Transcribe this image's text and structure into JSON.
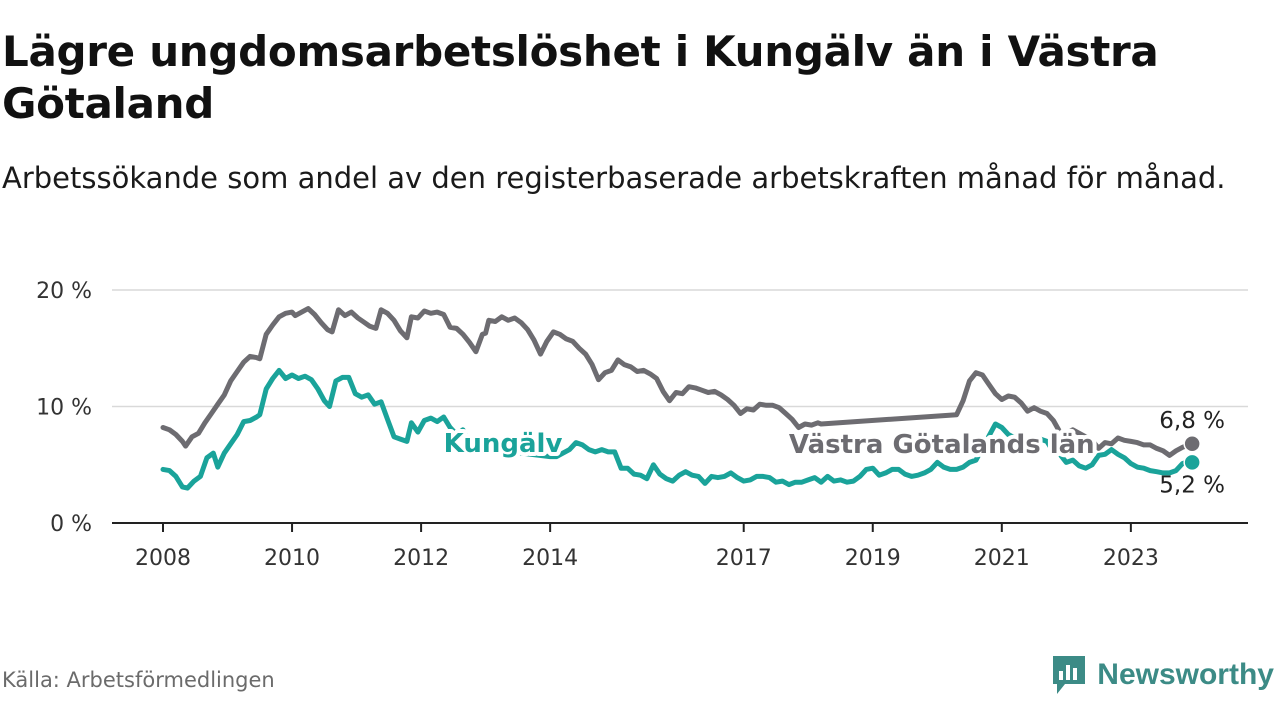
{
  "title": "Lägre ungdomsarbetslöshet i Kungälv än i Västra Götaland",
  "subtitle": "Arbetssökande som andel av den registerbaserade arbetskraften månad för månad.",
  "source": "Källa: Arbetsförmedlingen",
  "brand": "Newsworthy",
  "colors": {
    "vg": "#6d6c71",
    "kungalv": "#1aa39a",
    "grid": "#d9d9d9",
    "axis": "#222222"
  },
  "chart_data": {
    "type": "line",
    "title": "Lägre ungdomsarbetslöshet i Kungälv än i Västra Götaland",
    "ylim": [
      0,
      20
    ],
    "xlim": [
      2008,
      2024.8
    ],
    "y_ticks": [
      {
        "value": 0,
        "label": "0 %"
      },
      {
        "value": 10,
        "label": "10 %"
      },
      {
        "value": 20,
        "label": "20 %"
      }
    ],
    "x_ticks": [
      {
        "value": 2008,
        "label": "2008"
      },
      {
        "value": 2010,
        "label": "2010"
      },
      {
        "value": 2012,
        "label": "2012"
      },
      {
        "value": 2014,
        "label": "2014"
      },
      {
        "value": 2017,
        "label": "2017"
      },
      {
        "value": 2019,
        "label": "2019"
      },
      {
        "value": 2021,
        "label": "2021"
      },
      {
        "value": 2023,
        "label": "2023"
      }
    ],
    "series": [
      {
        "name": "Västra Götalands län",
        "label": "Västra Götalands län",
        "end_label": "6,8 %",
        "label_x": 2017.7,
        "label_y": 6.8,
        "points": [
          [
            2008.0,
            8.2
          ],
          [
            2008.1,
            8.0
          ],
          [
            2008.2,
            7.6
          ],
          [
            2008.3,
            7.0
          ],
          [
            2008.35,
            6.6
          ],
          [
            2008.45,
            7.4
          ],
          [
            2008.55,
            7.7
          ],
          [
            2008.65,
            8.6
          ],
          [
            2008.75,
            9.4
          ],
          [
            2008.85,
            10.2
          ],
          [
            2008.95,
            11.0
          ],
          [
            2009.05,
            12.2
          ],
          [
            2009.15,
            13.0
          ],
          [
            2009.25,
            13.8
          ],
          [
            2009.35,
            14.3
          ],
          [
            2009.45,
            14.2
          ],
          [
            2009.5,
            14.1
          ],
          [
            2009.6,
            16.2
          ],
          [
            2009.7,
            17.0
          ],
          [
            2009.8,
            17.7
          ],
          [
            2009.9,
            18.0
          ],
          [
            2010.0,
            18.1
          ],
          [
            2010.05,
            17.8
          ],
          [
            2010.15,
            18.1
          ],
          [
            2010.25,
            18.4
          ],
          [
            2010.35,
            17.9
          ],
          [
            2010.45,
            17.2
          ],
          [
            2010.55,
            16.6
          ],
          [
            2010.62,
            16.4
          ],
          [
            2010.72,
            18.3
          ],
          [
            2010.82,
            17.8
          ],
          [
            2010.92,
            18.1
          ],
          [
            2011.02,
            17.6
          ],
          [
            2011.1,
            17.3
          ],
          [
            2011.2,
            16.9
          ],
          [
            2011.3,
            16.7
          ],
          [
            2011.38,
            18.3
          ],
          [
            2011.48,
            18.0
          ],
          [
            2011.58,
            17.4
          ],
          [
            2011.68,
            16.5
          ],
          [
            2011.78,
            15.9
          ],
          [
            2011.85,
            17.7
          ],
          [
            2011.95,
            17.6
          ],
          [
            2012.05,
            18.2
          ],
          [
            2012.15,
            18.0
          ],
          [
            2012.25,
            18.1
          ],
          [
            2012.35,
            17.9
          ],
          [
            2012.45,
            16.8
          ],
          [
            2012.55,
            16.7
          ],
          [
            2012.65,
            16.2
          ],
          [
            2012.75,
            15.5
          ],
          [
            2012.85,
            14.7
          ],
          [
            2012.95,
            16.2
          ],
          [
            2013.0,
            16.3
          ],
          [
            2013.05,
            17.4
          ],
          [
            2013.15,
            17.3
          ],
          [
            2013.25,
            17.7
          ],
          [
            2013.35,
            17.4
          ],
          [
            2013.45,
            17.6
          ],
          [
            2013.55,
            17.2
          ],
          [
            2013.65,
            16.6
          ],
          [
            2013.75,
            15.7
          ],
          [
            2013.85,
            14.5
          ],
          [
            2013.95,
            15.6
          ],
          [
            2014.05,
            16.4
          ],
          [
            2014.15,
            16.2
          ],
          [
            2014.25,
            15.8
          ],
          [
            2014.35,
            15.6
          ],
          [
            2014.45,
            15.0
          ],
          [
            2014.55,
            14.5
          ],
          [
            2014.65,
            13.6
          ],
          [
            2014.75,
            12.3
          ],
          [
            2014.85,
            12.9
          ],
          [
            2014.95,
            13.1
          ],
          [
            2015.05,
            14.0
          ],
          [
            2015.15,
            13.6
          ],
          [
            2015.25,
            13.4
          ],
          [
            2015.35,
            13.0
          ],
          [
            2015.45,
            13.1
          ],
          [
            2015.55,
            12.8
          ],
          [
            2015.65,
            12.4
          ],
          [
            2015.75,
            11.3
          ],
          [
            2015.85,
            10.5
          ],
          [
            2015.95,
            11.2
          ],
          [
            2016.05,
            11.1
          ],
          [
            2016.15,
            11.7
          ],
          [
            2016.25,
            11.6
          ],
          [
            2016.35,
            11.4
          ],
          [
            2016.45,
            11.2
          ],
          [
            2016.55,
            11.3
          ],
          [
            2016.65,
            11.0
          ],
          [
            2016.75,
            10.6
          ],
          [
            2016.85,
            10.1
          ],
          [
            2016.95,
            9.4
          ],
          [
            2017.05,
            9.8
          ],
          [
            2017.15,
            9.7
          ],
          [
            2017.25,
            10.2
          ],
          [
            2017.35,
            10.1
          ],
          [
            2017.45,
            10.1
          ],
          [
            2017.55,
            9.9
          ],
          [
            2017.65,
            9.4
          ],
          [
            2017.75,
            8.9
          ],
          [
            2017.85,
            8.2
          ],
          [
            2017.95,
            8.5
          ],
          [
            2018.05,
            8.4
          ],
          [
            2018.15,
            8.6
          ],
          [
            2018.2,
            8.5
          ],
          [
            2020.3,
            9.3
          ],
          [
            2020.4,
            10.5
          ],
          [
            2020.5,
            12.2
          ],
          [
            2020.6,
            12.9
          ],
          [
            2020.7,
            12.7
          ],
          [
            2020.8,
            11.9
          ],
          [
            2020.9,
            11.1
          ],
          [
            2021.0,
            10.6
          ],
          [
            2021.1,
            10.9
          ],
          [
            2021.2,
            10.8
          ],
          [
            2021.3,
            10.3
          ],
          [
            2021.4,
            9.6
          ],
          [
            2021.5,
            9.9
          ],
          [
            2021.6,
            9.6
          ],
          [
            2021.7,
            9.4
          ],
          [
            2021.8,
            8.8
          ],
          [
            2021.9,
            7.8
          ],
          [
            2022.0,
            7.7
          ],
          [
            2022.1,
            8.0
          ],
          [
            2022.2,
            7.7
          ],
          [
            2022.3,
            7.4
          ],
          [
            2022.4,
            7.1
          ],
          [
            2022.5,
            6.4
          ],
          [
            2022.6,
            6.9
          ],
          [
            2022.7,
            6.8
          ],
          [
            2022.8,
            7.3
          ],
          [
            2022.9,
            7.1
          ],
          [
            2023.0,
            7.0
          ],
          [
            2023.1,
            6.9
          ],
          [
            2023.2,
            6.7
          ],
          [
            2023.3,
            6.7
          ],
          [
            2023.4,
            6.4
          ],
          [
            2023.5,
            6.2
          ],
          [
            2023.6,
            5.8
          ],
          [
            2023.7,
            6.2
          ],
          [
            2023.8,
            6.5
          ],
          [
            2023.9,
            6.7
          ],
          [
            2023.95,
            6.8
          ]
        ]
      },
      {
        "name": "Kungälv",
        "label": "Kungälv",
        "end_label": "5,2 %",
        "label_x": 2012.35,
        "label_y": 6.85,
        "points": [
          [
            2008.0,
            4.6
          ],
          [
            2008.1,
            4.5
          ],
          [
            2008.2,
            4.0
          ],
          [
            2008.3,
            3.1
          ],
          [
            2008.38,
            3.0
          ],
          [
            2008.48,
            3.6
          ],
          [
            2008.58,
            4.0
          ],
          [
            2008.68,
            5.6
          ],
          [
            2008.78,
            6.0
          ],
          [
            2008.85,
            4.8
          ],
          [
            2008.95,
            6.0
          ],
          [
            2009.05,
            6.8
          ],
          [
            2009.15,
            7.6
          ],
          [
            2009.25,
            8.7
          ],
          [
            2009.35,
            8.8
          ],
          [
            2009.45,
            9.1
          ],
          [
            2009.5,
            9.3
          ],
          [
            2009.6,
            11.5
          ],
          [
            2009.7,
            12.4
          ],
          [
            2009.8,
            13.1
          ],
          [
            2009.9,
            12.4
          ],
          [
            2010.0,
            12.7
          ],
          [
            2010.1,
            12.4
          ],
          [
            2010.2,
            12.6
          ],
          [
            2010.3,
            12.3
          ],
          [
            2010.4,
            11.5
          ],
          [
            2010.5,
            10.5
          ],
          [
            2010.58,
            10.0
          ],
          [
            2010.68,
            12.2
          ],
          [
            2010.78,
            12.5
          ],
          [
            2010.88,
            12.5
          ],
          [
            2010.98,
            11.1
          ],
          [
            2011.08,
            10.8
          ],
          [
            2011.18,
            11.0
          ],
          [
            2011.28,
            10.2
          ],
          [
            2011.38,
            10.4
          ],
          [
            2011.48,
            8.9
          ],
          [
            2011.58,
            7.4
          ],
          [
            2011.68,
            7.2
          ],
          [
            2011.78,
            7.0
          ],
          [
            2011.85,
            8.6
          ],
          [
            2011.95,
            7.8
          ],
          [
            2012.05,
            8.8
          ],
          [
            2012.15,
            9.0
          ],
          [
            2012.25,
            8.7
          ],
          [
            2012.35,
            9.1
          ],
          [
            2012.45,
            8.2
          ],
          [
            2012.55,
            7.6
          ],
          [
            2012.65,
            8.0
          ],
          [
            2012.75,
            6.8
          ],
          [
            2012.82,
            6.5
          ],
          [
            2014.0,
            5.7
          ],
          [
            2014.1,
            5.7
          ],
          [
            2014.2,
            6.0
          ],
          [
            2014.3,
            6.3
          ],
          [
            2014.4,
            6.9
          ],
          [
            2014.5,
            6.7
          ],
          [
            2014.6,
            6.3
          ],
          [
            2014.7,
            6.1
          ],
          [
            2014.8,
            6.3
          ],
          [
            2014.9,
            6.1
          ],
          [
            2015.0,
            6.1
          ],
          [
            2015.1,
            4.7
          ],
          [
            2015.2,
            4.7
          ],
          [
            2015.3,
            4.2
          ],
          [
            2015.4,
            4.1
          ],
          [
            2015.5,
            3.8
          ],
          [
            2015.6,
            5.0
          ],
          [
            2015.7,
            4.2
          ],
          [
            2015.8,
            3.8
          ],
          [
            2015.9,
            3.6
          ],
          [
            2016.0,
            4.1
          ],
          [
            2016.1,
            4.4
          ],
          [
            2016.2,
            4.1
          ],
          [
            2016.3,
            4.0
          ],
          [
            2016.4,
            3.4
          ],
          [
            2016.5,
            4.0
          ],
          [
            2016.6,
            3.9
          ],
          [
            2016.7,
            4.0
          ],
          [
            2016.8,
            4.3
          ],
          [
            2016.9,
            3.9
          ],
          [
            2017.0,
            3.6
          ],
          [
            2017.1,
            3.7
          ],
          [
            2017.2,
            4.0
          ],
          [
            2017.3,
            4.0
          ],
          [
            2017.4,
            3.9
          ],
          [
            2017.5,
            3.5
          ],
          [
            2017.6,
            3.6
          ],
          [
            2017.7,
            3.3
          ],
          [
            2017.8,
            3.5
          ],
          [
            2017.9,
            3.5
          ],
          [
            2018.0,
            3.7
          ],
          [
            2018.1,
            3.9
          ],
          [
            2018.2,
            3.5
          ],
          [
            2018.3,
            4.0
          ],
          [
            2018.4,
            3.6
          ],
          [
            2018.5,
            3.7
          ],
          [
            2018.6,
            3.5
          ],
          [
            2018.7,
            3.6
          ],
          [
            2018.8,
            4.0
          ],
          [
            2018.9,
            4.6
          ],
          [
            2019.0,
            4.7
          ],
          [
            2019.1,
            4.1
          ],
          [
            2019.2,
            4.3
          ],
          [
            2019.3,
            4.6
          ],
          [
            2019.4,
            4.6
          ],
          [
            2019.5,
            4.2
          ],
          [
            2019.6,
            4.0
          ],
          [
            2019.7,
            4.1
          ],
          [
            2019.8,
            4.3
          ],
          [
            2019.9,
            4.6
          ],
          [
            2020.0,
            5.2
          ],
          [
            2020.1,
            4.8
          ],
          [
            2020.2,
            4.6
          ],
          [
            2020.3,
            4.6
          ],
          [
            2020.4,
            4.8
          ],
          [
            2020.5,
            5.2
          ],
          [
            2020.6,
            5.4
          ],
          [
            2020.9,
            8.5
          ],
          [
            2021.0,
            8.2
          ],
          [
            2021.1,
            7.6
          ],
          [
            2021.2,
            7.3
          ],
          [
            2021.3,
            7.4
          ],
          [
            2021.4,
            7.0
          ],
          [
            2021.5,
            7.3
          ],
          [
            2021.6,
            7.2
          ],
          [
            2021.7,
            7.0
          ],
          [
            2021.8,
            6.1
          ],
          [
            2021.9,
            5.9
          ],
          [
            2022.0,
            5.2
          ],
          [
            2022.1,
            5.4
          ],
          [
            2022.2,
            4.9
          ],
          [
            2022.3,
            4.7
          ],
          [
            2022.4,
            5.0
          ],
          [
            2022.5,
            5.8
          ],
          [
            2022.6,
            5.9
          ],
          [
            2022.7,
            6.3
          ],
          [
            2022.8,
            5.9
          ],
          [
            2022.9,
            5.6
          ],
          [
            2023.0,
            5.1
          ],
          [
            2023.1,
            4.8
          ],
          [
            2023.2,
            4.7
          ],
          [
            2023.3,
            4.5
          ],
          [
            2023.4,
            4.4
          ],
          [
            2023.5,
            4.3
          ],
          [
            2023.6,
            4.3
          ],
          [
            2023.7,
            4.5
          ],
          [
            2023.8,
            5.1
          ],
          [
            2023.9,
            5.3
          ],
          [
            2023.95,
            5.2
          ]
        ]
      }
    ]
  }
}
